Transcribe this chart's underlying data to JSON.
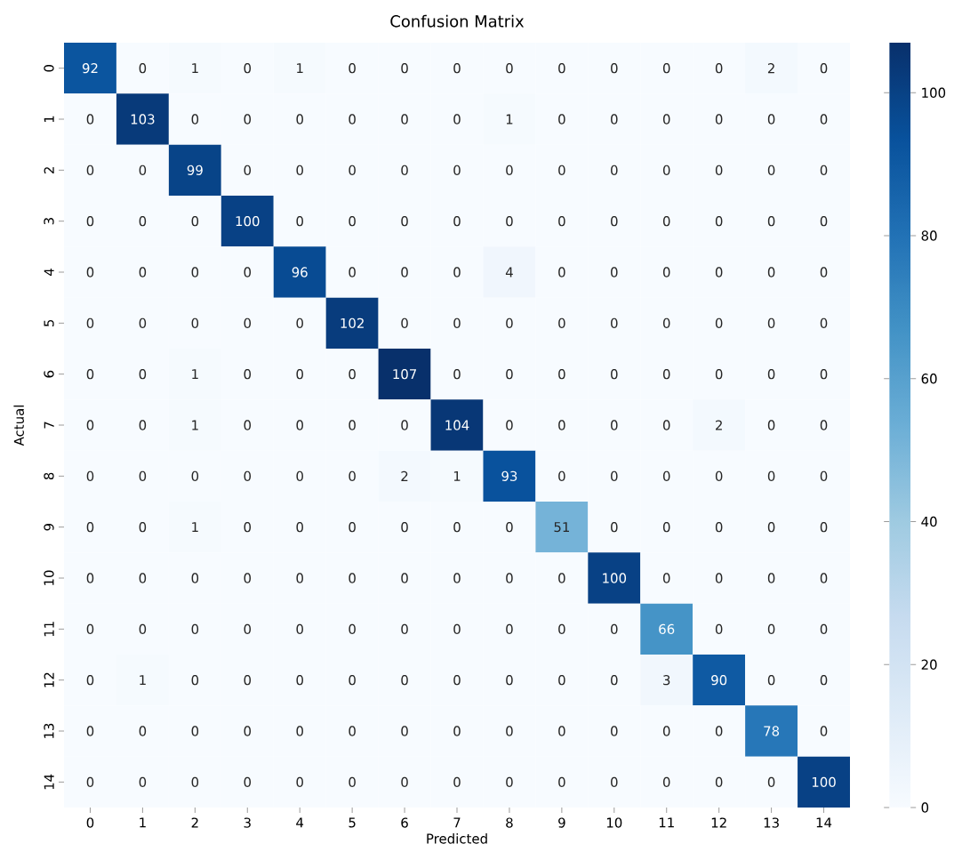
{
  "chart_data": {
    "type": "heatmap",
    "title": "Confusion Matrix",
    "xlabel": "Predicted",
    "ylabel": "Actual",
    "categories": [
      "0",
      "1",
      "2",
      "3",
      "4",
      "5",
      "6",
      "7",
      "8",
      "9",
      "10",
      "11",
      "12",
      "13",
      "14"
    ],
    "y_categories": [
      "0",
      "1",
      "2",
      "3",
      "4",
      "5",
      "6",
      "7",
      "8",
      "9",
      "10",
      "11",
      "12",
      "13",
      "14"
    ],
    "cells": [
      [
        92,
        0,
        1,
        0,
        1,
        0,
        0,
        0,
        0,
        0,
        0,
        0,
        0,
        2,
        0
      ],
      [
        0,
        103,
        0,
        0,
        0,
        0,
        0,
        0,
        1,
        0,
        0,
        0,
        0,
        0,
        0
      ],
      [
        0,
        0,
        99,
        0,
        0,
        0,
        0,
        0,
        0,
        0,
        0,
        0,
        0,
        0,
        0
      ],
      [
        0,
        0,
        0,
        100,
        0,
        0,
        0,
        0,
        0,
        0,
        0,
        0,
        0,
        0,
        0
      ],
      [
        0,
        0,
        0,
        0,
        96,
        0,
        0,
        0,
        4,
        0,
        0,
        0,
        0,
        0,
        0
      ],
      [
        0,
        0,
        0,
        0,
        0,
        102,
        0,
        0,
        0,
        0,
        0,
        0,
        0,
        0,
        0
      ],
      [
        0,
        0,
        1,
        0,
        0,
        0,
        107,
        0,
        0,
        0,
        0,
        0,
        0,
        0,
        0
      ],
      [
        0,
        0,
        1,
        0,
        0,
        0,
        0,
        104,
        0,
        0,
        0,
        0,
        2,
        0,
        0
      ],
      [
        0,
        0,
        0,
        0,
        0,
        0,
        2,
        1,
        93,
        0,
        0,
        0,
        0,
        0,
        0
      ],
      [
        0,
        0,
        1,
        0,
        0,
        0,
        0,
        0,
        0,
        51,
        0,
        0,
        0,
        0,
        0
      ],
      [
        0,
        0,
        0,
        0,
        0,
        0,
        0,
        0,
        0,
        0,
        100,
        0,
        0,
        0,
        0
      ],
      [
        0,
        0,
        0,
        0,
        0,
        0,
        0,
        0,
        0,
        0,
        0,
        66,
        0,
        0,
        0
      ],
      [
        0,
        1,
        0,
        0,
        0,
        0,
        0,
        0,
        0,
        0,
        0,
        3,
        90,
        0,
        0
      ],
      [
        0,
        0,
        0,
        0,
        0,
        0,
        0,
        0,
        0,
        0,
        0,
        0,
        0,
        78,
        0
      ],
      [
        0,
        0,
        0,
        0,
        0,
        0,
        0,
        0,
        0,
        0,
        0,
        0,
        0,
        0,
        100
      ]
    ],
    "clim": [
      0,
      107
    ],
    "cticks": [
      0,
      20,
      40,
      60,
      80,
      100
    ],
    "data_labels": true
  }
}
